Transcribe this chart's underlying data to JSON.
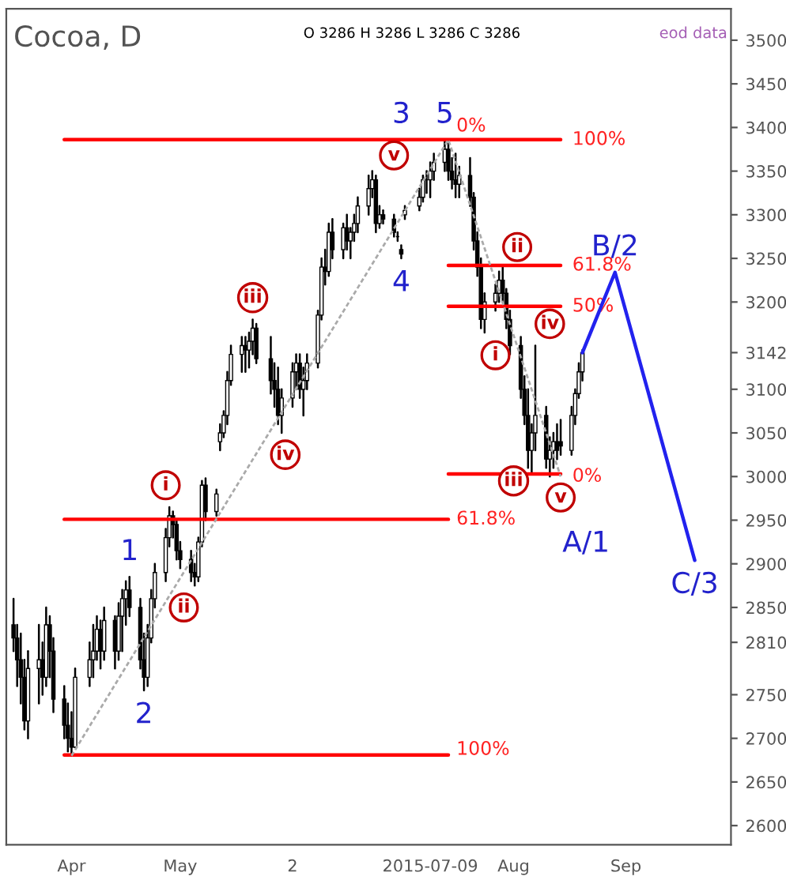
{
  "chart_data": {
    "type": "candlestick",
    "title": "Cocoa, D",
    "x": [
      "2015-03-16",
      "2015-03-17",
      "2015-03-18",
      "2015-03-19",
      "2015-03-20",
      "2015-03-23",
      "2015-03-24",
      "2015-03-25",
      "2015-03-26",
      "2015-03-27",
      "2015-03-30",
      "2015-03-31",
      "2015-04-01",
      "2015-04-02",
      "2015-04-06",
      "2015-04-07",
      "2015-04-08",
      "2015-04-09",
      "2015-04-10",
      "2015-04-13",
      "2015-04-14",
      "2015-04-15",
      "2015-04-16",
      "2015-04-17",
      "2015-04-20",
      "2015-04-21",
      "2015-04-22",
      "2015-04-23",
      "2015-04-24",
      "2015-04-27",
      "2015-04-28",
      "2015-04-29",
      "2015-04-30",
      "2015-05-01",
      "2015-05-04",
      "2015-05-05",
      "2015-05-06",
      "2015-05-07",
      "2015-05-08",
      "2015-05-11",
      "2015-05-12",
      "2015-05-13",
      "2015-05-14",
      "2015-05-15",
      "2015-05-18",
      "2015-05-19",
      "2015-05-20",
      "2015-05-21",
      "2015-05-22",
      "2015-05-26",
      "2015-05-27",
      "2015-05-28",
      "2015-05-29",
      "2015-06-01",
      "2015-06-02",
      "2015-06-03",
      "2015-06-04",
      "2015-06-05",
      "2015-06-08",
      "2015-06-09",
      "2015-06-10",
      "2015-06-11",
      "2015-06-12",
      "2015-06-15",
      "2015-06-16",
      "2015-06-17",
      "2015-06-18",
      "2015-06-19",
      "2015-06-22",
      "2015-06-23",
      "2015-06-24",
      "2015-06-25",
      "2015-06-26",
      "2015-06-29",
      "2015-06-30",
      "2015-07-01",
      "2015-07-02",
      "2015-07-06",
      "2015-07-07",
      "2015-07-08",
      "2015-07-09",
      "2015-07-10",
      "2015-07-13",
      "2015-07-14",
      "2015-07-15",
      "2015-07-16",
      "2015-07-17",
      "2015-07-20",
      "2015-07-21",
      "2015-07-22",
      "2015-07-23",
      "2015-07-24",
      "2015-07-27",
      "2015-07-28",
      "2015-07-29",
      "2015-07-30",
      "2015-07-31",
      "2015-08-03",
      "2015-08-04",
      "2015-08-05",
      "2015-08-06",
      "2015-08-07",
      "2015-08-10",
      "2015-08-11",
      "2015-08-12",
      "2015-08-13",
      "2015-08-14",
      "2015-08-17",
      "2015-08-18",
      "2015-08-19",
      "2015-08-20"
    ],
    "ohlc": [
      [
        2830,
        2860,
        2800,
        2815
      ],
      [
        2815,
        2830,
        2760,
        2790
      ],
      [
        2790,
        2820,
        2740,
        2770
      ],
      [
        2770,
        2790,
        2710,
        2720
      ],
      [
        2720,
        2800,
        2700,
        2780
      ],
      [
        2780,
        2830,
        2740,
        2790
      ],
      [
        2790,
        2810,
        2750,
        2770
      ],
      [
        2770,
        2850,
        2760,
        2830
      ],
      [
        2830,
        2840,
        2770,
        2800
      ],
      [
        2800,
        2815,
        2730,
        2745
      ],
      [
        2745,
        2760,
        2700,
        2715
      ],
      [
        2715,
        2740,
        2685,
        2700
      ],
      [
        2700,
        2730,
        2680,
        2690
      ],
      [
        2690,
        2780,
        2690,
        2770
      ],
      [
        2770,
        2810,
        2760,
        2790
      ],
      [
        2790,
        2830,
        2770,
        2800
      ],
      [
        2800,
        2840,
        2790,
        2825
      ],
      [
        2825,
        2835,
        2780,
        2800
      ],
      [
        2800,
        2850,
        2790,
        2835
      ],
      [
        2835,
        2840,
        2780,
        2800
      ],
      [
        2800,
        2855,
        2790,
        2840
      ],
      [
        2840,
        2870,
        2800,
        2860
      ],
      [
        2860,
        2880,
        2830,
        2870
      ],
      [
        2870,
        2885,
        2840,
        2850
      ],
      [
        2850,
        2860,
        2780,
        2790
      ],
      [
        2790,
        2820,
        2755,
        2770
      ],
      [
        2770,
        2830,
        2760,
        2815
      ],
      [
        2815,
        2870,
        2810,
        2860
      ],
      [
        2860,
        2900,
        2850,
        2890
      ],
      [
        2890,
        2940,
        2880,
        2930
      ],
      [
        2930,
        2965,
        2920,
        2955
      ],
      [
        2955,
        2960,
        2930,
        2945
      ],
      [
        2945,
        2950,
        2905,
        2915
      ],
      [
        2915,
        2925,
        2895,
        2905
      ],
      [
        2905,
        2915,
        2880,
        2890
      ],
      [
        2890,
        2900,
        2875,
        2885
      ],
      [
        2885,
        2930,
        2880,
        2925
      ],
      [
        2925,
        2995,
        2920,
        2990
      ],
      [
        2990,
        2998,
        2950,
        2960
      ],
      [
        2960,
        2985,
        2955,
        2980
      ],
      [
        3040,
        3060,
        3030,
        3050
      ],
      [
        3050,
        3075,
        3045,
        3070
      ],
      [
        3070,
        3120,
        3060,
        3110
      ],
      [
        3110,
        3150,
        3105,
        3140
      ],
      [
        3140,
        3160,
        3120,
        3150
      ],
      [
        3150,
        3160,
        3120,
        3145
      ],
      [
        3145,
        3165,
        3125,
        3155
      ],
      [
        3155,
        3180,
        3140,
        3170
      ],
      [
        3170,
        3175,
        3130,
        3135
      ],
      [
        3135,
        3160,
        3095,
        3110
      ],
      [
        3110,
        3130,
        3080,
        3100
      ],
      [
        3100,
        3125,
        3060,
        3070
      ],
      [
        3070,
        3100,
        3050,
        3090
      ],
      [
        3090,
        3130,
        3080,
        3120
      ],
      [
        3120,
        3140,
        3100,
        3130
      ],
      [
        3130,
        3140,
        3090,
        3100
      ],
      [
        3100,
        3125,
        3070,
        3110
      ],
      [
        3110,
        3140,
        3100,
        3130
      ],
      [
        3130,
        3190,
        3125,
        3185
      ],
      [
        3185,
        3250,
        3180,
        3240
      ],
      [
        3240,
        3260,
        3220,
        3235
      ],
      [
        3235,
        3290,
        3230,
        3280
      ],
      [
        3280,
        3295,
        3250,
        3260
      ],
      [
        3260,
        3290,
        3250,
        3285
      ],
      [
        3285,
        3300,
        3260,
        3270
      ],
      [
        3270,
        3285,
        3250,
        3280
      ],
      [
        3280,
        3300,
        3270,
        3290
      ],
      [
        3290,
        3320,
        3280,
        3310
      ],
      [
        3310,
        3345,
        3300,
        3330
      ],
      [
        3330,
        3350,
        3320,
        3340
      ],
      [
        3340,
        3345,
        3280,
        3290
      ],
      [
        3290,
        3310,
        3285,
        3300
      ],
      [
        3300,
        3305,
        3290,
        3295
      ],
      [
        3295,
        3300,
        3275,
        3280
      ],
      [
        3275,
        3280,
        3270,
        3275
      ],
      [
        3260,
        3265,
        3250,
        3255
      ],
      [
        3300,
        3310,
        3295,
        3305
      ],
      [
        3310,
        3330,
        3305,
        3320
      ],
      [
        3320,
        3345,
        3315,
        3340
      ],
      [
        3340,
        3350,
        3325,
        3340
      ],
      [
        3340,
        3360,
        3320,
        3350
      ],
      [
        3350,
        3370,
        3340,
        3360
      ],
      [
        3360,
        3386,
        3350,
        3375
      ],
      [
        3375,
        3386,
        3340,
        3350
      ],
      [
        3350,
        3365,
        3330,
        3340
      ],
      [
        3340,
        3370,
        3320,
        3335
      ],
      [
        3335,
        3355,
        3320,
        3345
      ],
      [
        3345,
        3365,
        3310,
        3320
      ],
      [
        3320,
        3325,
        3260,
        3270
      ],
      [
        3270,
        3280,
        3230,
        3240
      ],
      [
        3240,
        3250,
        3170,
        3180
      ],
      [
        3180,
        3210,
        3165,
        3200
      ],
      [
        3200,
        3220,
        3190,
        3210
      ],
      [
        3210,
        3235,
        3200,
        3225
      ],
      [
        3225,
        3242,
        3200,
        3210
      ],
      [
        3210,
        3215,
        3170,
        3180
      ],
      [
        3180,
        3190,
        3140,
        3150
      ],
      [
        3150,
        3160,
        3090,
        3100
      ],
      [
        3100,
        3115,
        3060,
        3070
      ],
      [
        3070,
        3100,
        3010,
        3030
      ],
      [
        3030,
        3060,
        3005,
        3050
      ],
      [
        3050,
        3150,
        3030,
        3070
      ],
      [
        3070,
        3080,
        3010,
        3020
      ],
      [
        3020,
        3045,
        3000,
        3030
      ],
      [
        3030,
        3050,
        3010,
        3040
      ],
      [
        3040,
        3060,
        3020,
        3030
      ],
      [
        3040,
        3065,
        3025,
        3035
      ],
      [
        3030,
        3080,
        3025,
        3070
      ],
      [
        3070,
        3100,
        3060,
        3095
      ],
      [
        3095,
        3130,
        3090,
        3120
      ],
      [
        3120,
        3145,
        3110,
        3142
      ]
    ],
    "series": [
      {
        "type": "line",
        "color": "#ff0000",
        "x": [
          "2015-03-30",
          "2015-08-14"
        ],
        "values": [
          3386,
          3386
        ]
      },
      {
        "type": "line",
        "color": "#ff0000",
        "x": [
          "2015-03-30",
          "2015-07-14"
        ],
        "values": [
          2951,
          2951
        ]
      },
      {
        "type": "line",
        "color": "#ff0000",
        "x": [
          "2015-03-30",
          "2015-07-14"
        ],
        "values": [
          2681,
          2681
        ]
      },
      {
        "type": "line",
        "color": "#ff0000",
        "x": [
          "2015-07-14",
          "2015-08-14"
        ],
        "values": [
          3242,
          3242
        ]
      },
      {
        "type": "line",
        "color": "#ff0000",
        "x": [
          "2015-07-14",
          "2015-08-14"
        ],
        "values": [
          3195,
          3195
        ]
      },
      {
        "type": "line",
        "color": "#ff0000",
        "x": [
          "2015-07-14",
          "2015-08-14"
        ],
        "values": [
          3003,
          3003
        ]
      },
      {
        "type": "line",
        "color": "#aaaaaa",
        "line_style": "dashed",
        "x": [
          "2015-04-01",
          "2015-07-14",
          "2015-08-14"
        ],
        "values": [
          2680,
          3386,
          3000
        ]
      },
      {
        "type": "line",
        "color": "#2222ee",
        "x": [
          "2015-08-20",
          "2015-08-29",
          "2015-09-20"
        ],
        "values": [
          3142,
          3234,
          2904
        ]
      }
    ],
    "annotations": [
      "O 3286 H 3286 L 3286 C 3286",
      "eod data",
      "A/1",
      {
        "text": "1",
        "x": "2015-04-17",
        "y": 2885
      },
      {
        "text": "2",
        "x": "2015-04-21",
        "y": 2755
      },
      {
        "text": "3",
        "x": "2015-07-01",
        "y": 3386
      },
      {
        "text": "4",
        "x": "2015-07-01",
        "y": 3250
      },
      {
        "text": "5",
        "x": "2015-07-13",
        "y": 3386
      },
      {
        "text": "B/2",
        "x": "2015-08-29",
        "y": 3234
      },
      {
        "text": "C/3",
        "x": "2015-09-20",
        "y": 2904
      },
      {
        "text": "i",
        "x": "2015-04-27",
        "y": 2990
      },
      {
        "text": "ii",
        "x": "2015-05-02",
        "y": 2850
      },
      {
        "text": "iii",
        "x": "2015-05-21",
        "y": 3205
      },
      {
        "text": "iv",
        "x": "2015-05-30",
        "y": 3025
      },
      {
        "text": "v",
        "x": "2015-06-29",
        "y": 3368
      },
      {
        "text": "i",
        "x": "2015-07-27",
        "y": 3139
      },
      {
        "text": "ii",
        "x": "2015-08-02",
        "y": 3263
      },
      {
        "text": "iii",
        "x": "2015-08-01",
        "y": 2995
      },
      {
        "text": "iv",
        "x": "2015-08-11",
        "y": 3175
      },
      {
        "text": "v",
        "x": "2015-08-14",
        "y": 2976
      },
      {
        "text": "0%",
        "x": "2015-07-15",
        "y": 3386
      },
      {
        "text": "61.8%",
        "x": "2015-07-15",
        "y": 2951
      },
      {
        "text": "100%",
        "x": "2015-07-15",
        "y": 2687
      },
      {
        "text": "100%",
        "x": "2015-08-16",
        "y": 3386
      },
      {
        "text": "61.8%",
        "x": "2015-08-16",
        "y": 3242
      },
      {
        "text": "50%",
        "x": "2015-08-16",
        "y": 3195
      },
      {
        "text": "0%",
        "x": "2015-08-16",
        "y": 3000
      }
    ],
    "xlim": [
      "2015-03-14",
      "2015-09-30"
    ],
    "xticks": [
      {
        "value": "2015-04-01",
        "label": "Apr"
      },
      {
        "value": "2015-05-01",
        "label": "May"
      },
      {
        "value": "2015-06-01",
        "label": "2"
      },
      {
        "value": "2015-07-09",
        "label": "2015-07-09"
      },
      {
        "value": "2015-08-01",
        "label": "Aug"
      },
      {
        "value": "2015-09-01",
        "label": "Sep"
      }
    ],
    "ylim": [
      2578,
      3536
    ],
    "yticks": [
      2600,
      2650,
      2700,
      2750,
      2810,
      2850,
      2900,
      2950,
      3000,
      3050,
      3100,
      3142,
      3200,
      3250,
      3300,
      3350,
      3400,
      3450,
      3500
    ],
    "grid": false,
    "legend": false
  }
}
